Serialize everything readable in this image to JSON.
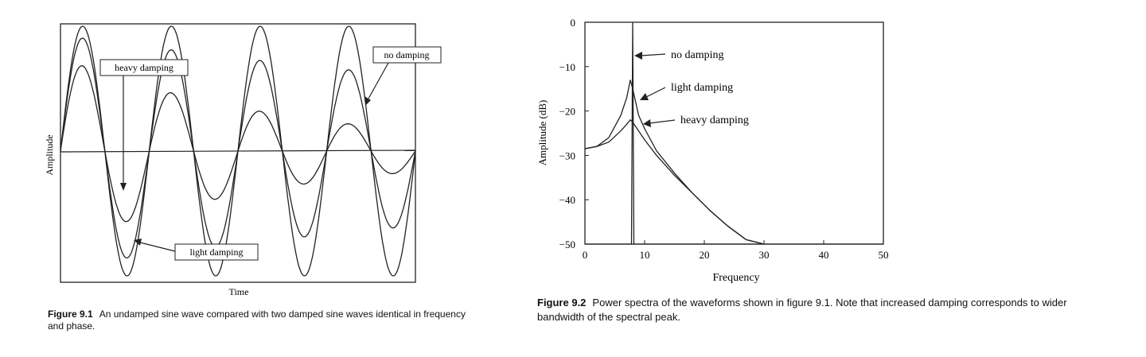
{
  "chart_data": [
    {
      "type": "line",
      "title": "",
      "xlabel": "Time",
      "ylabel": "Amplitude",
      "x_ticks": [],
      "y_ticks": [],
      "annotations": [
        "heavy damping",
        "no damping",
        "light damping"
      ],
      "series": [
        {
          "name": "no damping",
          "frequency_cycles": 4,
          "amplitude": 1.0,
          "decay": 0.0
        },
        {
          "name": "light damping",
          "frequency_cycles": 4,
          "amplitude": 0.93,
          "decay": 0.11
        },
        {
          "name": "heavy damping",
          "frequency_cycles": 4,
          "amplitude": 0.75,
          "decay": 0.38
        }
      ],
      "xlim": [
        0,
        4
      ],
      "ylim": [
        -1.05,
        1.05
      ],
      "grid": false,
      "caption_label": "Figure 9.1",
      "caption_text": "An undamped sine wave compared with two damped sine waves identical in frequency and phase."
    },
    {
      "type": "line",
      "title": "",
      "xlabel": "Frequency",
      "ylabel": "Amplitude (dB)",
      "xlim": [
        0,
        50
      ],
      "ylim": [
        -50,
        0
      ],
      "x_ticks": [
        0,
        10,
        20,
        30,
        40,
        50
      ],
      "y_ticks": [
        0,
        -10,
        -20,
        -30,
        -40,
        -50
      ],
      "annotations": [
        "no damping",
        "light damping",
        "heavy damping"
      ],
      "series": [
        {
          "name": "no damping",
          "x": [
            0,
            7.6,
            7.8,
            8.0,
            8.2,
            8.4,
            50
          ],
          "y": [
            -50,
            -50,
            -50,
            0,
            -50,
            -50,
            -50
          ]
        },
        {
          "name": "light damping",
          "x": [
            0,
            2,
            4,
            6,
            7,
            7.6,
            8,
            9,
            10,
            12,
            15,
            18,
            21,
            24,
            27,
            30
          ],
          "y": [
            -28.5,
            -28,
            -26,
            -21,
            -17,
            -13,
            -15,
            -21,
            -24,
            -29,
            -34,
            -38.5,
            -42.5,
            -46,
            -49,
            -50
          ]
        },
        {
          "name": "heavy damping",
          "x": [
            0,
            2,
            4,
            6,
            7,
            7.6,
            8,
            9,
            10,
            12,
            15,
            18,
            21,
            24,
            27,
            30
          ],
          "y": [
            -28.5,
            -28,
            -27,
            -24.5,
            -23,
            -22,
            -22.5,
            -24.5,
            -26.5,
            -30,
            -34.5,
            -38.5,
            -42.5,
            -46,
            -49,
            -50
          ]
        }
      ],
      "grid": false,
      "caption_label": "Figure 9.2",
      "caption_text": "Power spectra of the waveforms shown in figure 9.1. Note that increased damping corresponds to wider bandwidth of the spectral peak."
    }
  ]
}
